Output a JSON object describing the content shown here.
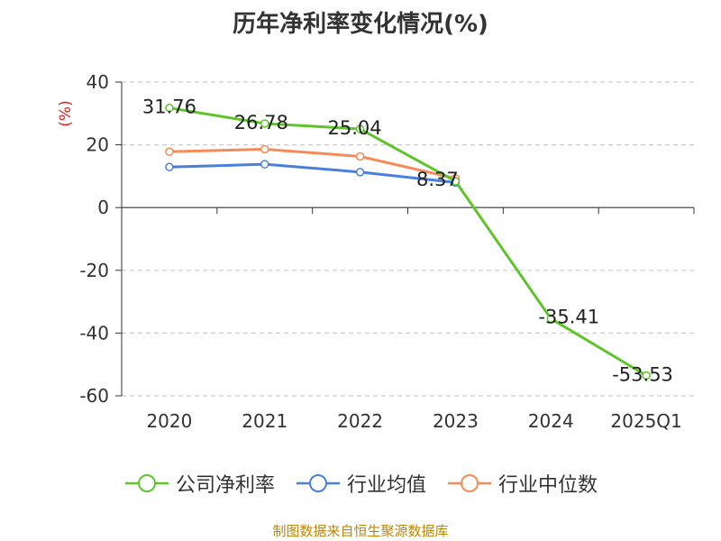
{
  "chart_data": {
    "type": "line",
    "title": "历年净利率变化情况(%)",
    "ylabel": "(%)",
    "xlabel": "",
    "categories": [
      "2020",
      "2021",
      "2022",
      "2023",
      "2024",
      "2025Q1"
    ],
    "ylim": [
      -60,
      40
    ],
    "yticks": [
      40,
      20,
      0,
      -20,
      -40,
      -60
    ],
    "grid": true,
    "legend_position": "bottom",
    "series": [
      {
        "name": "公司净利率",
        "color": "#5ec42a",
        "values": [
          31.76,
          26.78,
          25.04,
          8.37,
          -35.41,
          -53.53
        ],
        "labels": [
          "31.76",
          "26.78",
          "25.04",
          "8.37",
          "-35.41",
          "-53.53"
        ]
      },
      {
        "name": "行业均值",
        "color": "#4a7fdc",
        "values": [
          12.9,
          13.8,
          11.3,
          8.0,
          null,
          null
        ]
      },
      {
        "name": "行业中位数",
        "color": "#f58b58",
        "values": [
          17.8,
          18.6,
          16.3,
          9.3,
          null,
          null
        ]
      }
    ]
  },
  "source_note": "制图数据来自恒生聚源数据库"
}
